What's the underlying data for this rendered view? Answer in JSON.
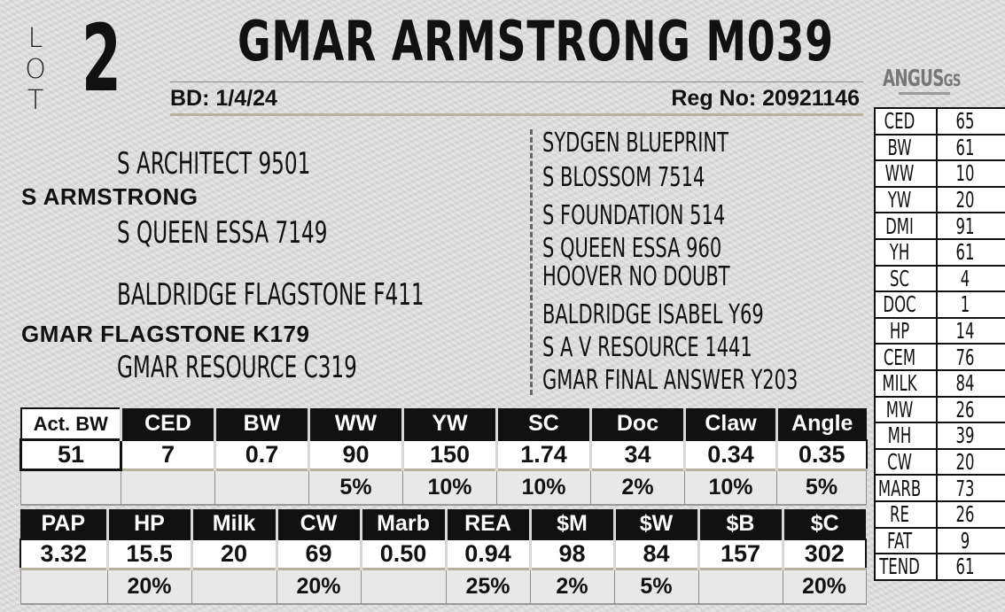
{
  "header": {
    "lot_letters": [
      "L",
      "O",
      "T"
    ],
    "lot_number": "2",
    "animal_name": "GMAR ARMSTRONG M039",
    "bd_label": "BD:",
    "bd_value": "1/4/24",
    "reg_label": "Reg No:",
    "reg_value": "20921146"
  },
  "logo": {
    "text": "ANGUS",
    "suffix": "GS"
  },
  "pedigree": {
    "sire": "S ARMSTRONG",
    "sire_sire": "S ARCHITECT 9501",
    "sire_dam": "S QUEEN ESSA 7149",
    "dam": "GMAR FLAGSTONE K179",
    "dam_sire": "BALDRIDGE FLAGSTONE F411",
    "dam_dam": "GMAR RESOURCE C319",
    "great_grandparents": [
      "SYDGEN BLUEPRINT",
      "S BLOSSOM 7514",
      "S FOUNDATION 514",
      "S QUEEN ESSA 960",
      "HOOVER NO DOUBT",
      "BALDRIDGE ISABEL Y69",
      "S A V RESOURCE 1441",
      "GMAR FINAL ANSWER Y203"
    ]
  },
  "epd_side": [
    {
      "trait": "CED",
      "value": "65"
    },
    {
      "trait": "BW",
      "value": "61"
    },
    {
      "trait": "WW",
      "value": "10"
    },
    {
      "trait": "YW",
      "value": "20"
    },
    {
      "trait": "DMI",
      "value": "91"
    },
    {
      "trait": "YH",
      "value": "61"
    },
    {
      "trait": "SC",
      "value": "4"
    },
    {
      "trait": "DOC",
      "value": "1"
    },
    {
      "trait": "HP",
      "value": "14"
    },
    {
      "trait": "CEM",
      "value": "76"
    },
    {
      "trait": "MILK",
      "value": "84"
    },
    {
      "trait": "MW",
      "value": "26"
    },
    {
      "trait": "MH",
      "value": "39"
    },
    {
      "trait": "CW",
      "value": "20"
    },
    {
      "trait": "MARB",
      "value": "73"
    },
    {
      "trait": "RE",
      "value": "26"
    },
    {
      "trait": "FAT",
      "value": "9"
    },
    {
      "trait": "TEND",
      "value": "61"
    }
  ],
  "table1": {
    "headers": [
      "Act. BW",
      "CED",
      "BW",
      "WW",
      "YW",
      "SC",
      "Doc",
      "Claw",
      "Angle"
    ],
    "values": [
      "51",
      "7",
      "0.7",
      "90",
      "150",
      "1.74",
      "34",
      "0.34",
      "0.35"
    ],
    "percentiles": [
      "",
      "",
      "",
      "5%",
      "10%",
      "10%",
      "2%",
      "10%",
      "5%"
    ]
  },
  "table2": {
    "headers": [
      "PAP",
      "HP",
      "Milk",
      "CW",
      "Marb",
      "REA",
      "$M",
      "$W",
      "$B",
      "$C"
    ],
    "values": [
      "3.32",
      "15.5",
      "20",
      "69",
      "0.50",
      "0.94",
      "98",
      "84",
      "157",
      "302"
    ],
    "percentiles": [
      "",
      "20%",
      "",
      "20%",
      "",
      "25%",
      "2%",
      "5%",
      "",
      "20%"
    ]
  }
}
